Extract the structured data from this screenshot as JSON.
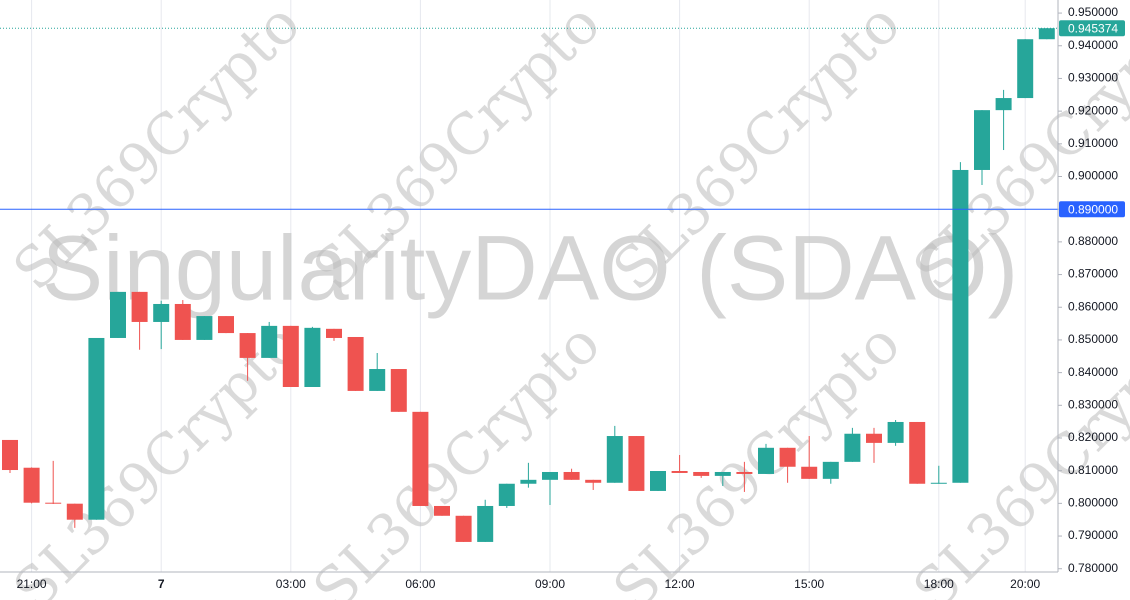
{
  "chart_data": {
    "type": "candlestick",
    "title": "SingularityDAO (SDAO)",
    "watermark": "SL369Crypto",
    "categories": [
      null,
      "21:00",
      null,
      null,
      null,
      null,
      null,
      "7",
      null,
      null,
      null,
      null,
      null,
      "03:00",
      null,
      null,
      null,
      null,
      null,
      "06:00",
      null,
      null,
      null,
      null,
      null,
      "09:00",
      null,
      null,
      null,
      null,
      null,
      "12:00",
      null,
      null,
      null,
      null,
      null,
      "15:00",
      null,
      null,
      null,
      null,
      null,
      "18:00",
      null,
      null,
      null,
      "20:00",
      null
    ],
    "open": [
      0.8194,
      0.8109,
      0.8002,
      0.7999,
      0.795,
      0.8506,
      0.8647,
      0.8555,
      0.861,
      0.85,
      0.8573,
      0.8521,
      0.8445,
      0.8543,
      0.8356,
      0.8534,
      0.8509,
      0.8344,
      0.8411,
      0.828,
      0.7992,
      0.7962,
      0.7882,
      0.7992,
      0.806,
      0.8072,
      0.8096,
      0.8072,
      0.8063,
      0.8206,
      0.8038,
      0.8099,
      0.8096,
      0.8084,
      0.8096,
      0.809,
      0.817,
      0.8112,
      0.8075,
      0.8127,
      0.8213,
      0.8185,
      0.8249,
      0.806,
      0.8063,
      0.902,
      0.9203,
      0.924,
      0.942
    ],
    "high": [
      0.8194,
      0.811,
      0.813,
      0.7999,
      0.8506,
      0.8647,
      0.8647,
      0.862,
      0.8622,
      0.8573,
      0.8573,
      0.8521,
      0.8555,
      0.8543,
      0.854,
      0.8534,
      0.8509,
      0.846,
      0.8411,
      0.828,
      0.7992,
      0.7962,
      0.8011,
      0.806,
      0.8124,
      0.8096,
      0.8106,
      0.8072,
      0.8237,
      0.8206,
      0.8099,
      0.8148,
      0.8096,
      0.8096,
      0.8127,
      0.8182,
      0.817,
      0.8206,
      0.8127,
      0.8231,
      0.8231,
      0.8255,
      0.8249,
      0.8115,
      0.9044,
      0.9203,
      0.9265,
      0.942,
      0.945374
    ],
    "low": [
      0.8093,
      0.8,
      0.7998,
      0.7925,
      0.795,
      0.8506,
      0.847,
      0.8472,
      0.85,
      0.85,
      0.8521,
      0.8375,
      0.8445,
      0.8356,
      0.8356,
      0.8497,
      0.8344,
      0.8344,
      0.828,
      0.7992,
      0.7962,
      0.7882,
      0.7882,
      0.7986,
      0.8048,
      0.7995,
      0.8072,
      0.8041,
      0.8063,
      0.8038,
      0.8038,
      0.8093,
      0.8078,
      0.8053,
      0.8035,
      0.809,
      0.8063,
      0.8075,
      0.806,
      0.8127,
      0.8124,
      0.8176,
      0.806,
      0.806,
      0.8063,
      0.8974,
      0.9081,
      0.924,
      0.942
    ],
    "close": [
      0.8102,
      0.8002,
      0.8,
      0.795,
      0.8506,
      0.8647,
      0.8555,
      0.861,
      0.85,
      0.8573,
      0.8521,
      0.8445,
      0.8543,
      0.8356,
      0.8537,
      0.8506,
      0.8344,
      0.8411,
      0.828,
      0.7992,
      0.7962,
      0.7882,
      0.7992,
      0.806,
      0.8072,
      0.8096,
      0.8072,
      0.8063,
      0.8206,
      0.8038,
      0.8099,
      0.8093,
      0.8084,
      0.8096,
      0.809,
      0.817,
      0.8112,
      0.8075,
      0.8127,
      0.8213,
      0.8185,
      0.8249,
      0.806,
      0.8063,
      0.902,
      0.9203,
      0.924,
      0.942,
      0.945374
    ],
    "up_color": "#26a69a",
    "down_color": "#ef5350",
    "ylim": [
      0.779,
      0.954
    ],
    "yticks": [
      {
        "value": 0.78,
        "label": "0.780000"
      },
      {
        "value": 0.79,
        "label": "0.790000"
      },
      {
        "value": 0.8,
        "label": "0.800000"
      },
      {
        "value": 0.81,
        "label": "0.810000"
      },
      {
        "value": 0.82,
        "label": "0.820000"
      },
      {
        "value": 0.83,
        "label": "0.830000"
      },
      {
        "value": 0.84,
        "label": "0.840000"
      },
      {
        "value": 0.85,
        "label": "0.850000"
      },
      {
        "value": 0.86,
        "label": "0.860000"
      },
      {
        "value": 0.87,
        "label": "0.870000"
      },
      {
        "value": 0.88,
        "label": "0.880000"
      },
      {
        "value": 0.89,
        "label": "0.890000"
      },
      {
        "value": 0.9,
        "label": "0.900000"
      },
      {
        "value": 0.91,
        "label": "0.910000"
      },
      {
        "value": 0.92,
        "label": "0.920000"
      },
      {
        "value": 0.93,
        "label": "0.930000"
      },
      {
        "value": 0.94,
        "label": "0.940000"
      },
      {
        "value": 0.95,
        "label": "0.950000"
      }
    ],
    "price_lines": [
      {
        "value": 0.945374,
        "label": "0.945374",
        "color": "#26a69a",
        "style": "dotted"
      },
      {
        "value": 0.89,
        "label": "0.890000",
        "color": "#2962ff",
        "style": "solid"
      }
    ],
    "grid": true
  }
}
